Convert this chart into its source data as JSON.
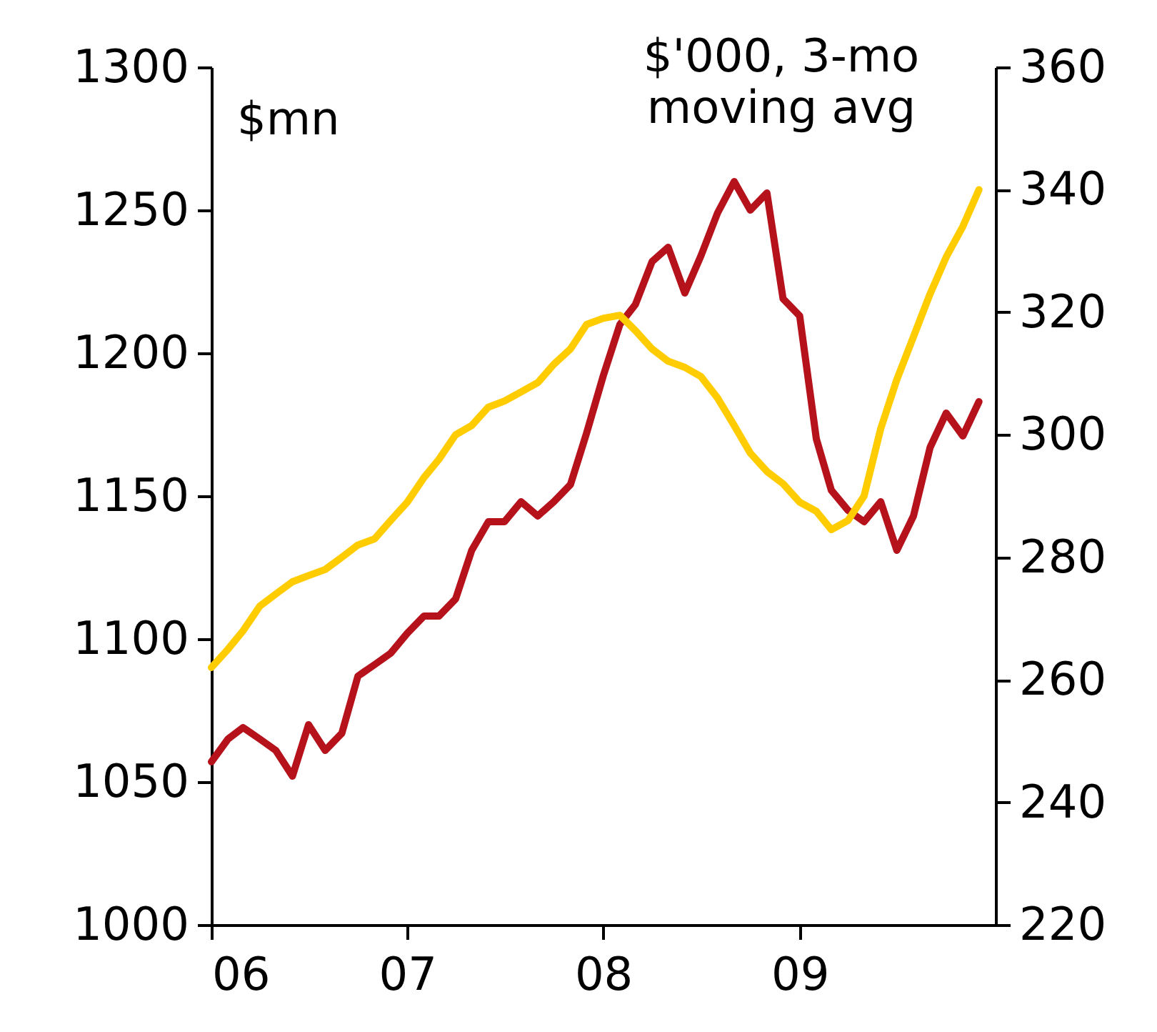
{
  "chart_data": {
    "type": "line",
    "ylabel": "$mn",
    "y2label": "$'000, 3-mo\nmoving avg",
    "x": [
      "2006-01",
      "2006-02",
      "2006-03",
      "2006-04",
      "2006-05",
      "2006-06",
      "2006-07",
      "2006-08",
      "2006-09",
      "2006-10",
      "2006-11",
      "2006-12",
      "2007-01",
      "2007-02",
      "2007-03",
      "2007-04",
      "2007-05",
      "2007-06",
      "2007-07",
      "2007-08",
      "2007-09",
      "2007-10",
      "2007-11",
      "2007-12",
      "2008-01",
      "2008-02",
      "2008-03",
      "2008-04",
      "2008-05",
      "2008-06",
      "2008-07",
      "2008-08",
      "2008-09",
      "2008-10",
      "2008-11",
      "2008-12",
      "2009-01",
      "2009-02",
      "2009-03",
      "2009-04",
      "2009-05",
      "2009-06",
      "2009-07",
      "2009-08",
      "2009-09",
      "2009-10",
      "2009-11",
      "2009-12"
    ],
    "series": [
      {
        "color": "#b5121b",
        "values": [
          1057,
          1065,
          1069,
          1065,
          1061,
          1052,
          1070,
          1061,
          1067,
          1087,
          1091,
          1095,
          1102,
          1108,
          1108,
          1114,
          1131,
          1141,
          1141,
          1148,
          1143,
          1148,
          1154,
          1172,
          1192,
          1210,
          1217,
          1232,
          1237,
          1221,
          1234,
          1249,
          1260,
          1250,
          1256,
          1219,
          1213,
          1170,
          1152,
          1145,
          1141,
          1148,
          1131,
          1143,
          1167,
          1179,
          1171,
          1183
        ]
      },
      {
        "color": "#ffcc00",
        "axis": "y2",
        "values": [
          262,
          265,
          268,
          272,
          274,
          276,
          277,
          278,
          280,
          282,
          283,
          286,
          289,
          293,
          296,
          300,
          301.5,
          304.5,
          305.5,
          307,
          308.5,
          311.5,
          314,
          318,
          319,
          319.5,
          317,
          314,
          312,
          311,
          309.5,
          306,
          301.5,
          297,
          294,
          292,
          289,
          287.5,
          284.5,
          286,
          290,
          301,
          309,
          316,
          323,
          329,
          334,
          340
        ]
      }
    ],
    "xlim": [
      "2006-01",
      "2010-01"
    ],
    "xticks": [
      {
        "value": "2006-01",
        "label": "06"
      },
      {
        "value": "2007-01",
        "label": "07"
      },
      {
        "value": "2008-01",
        "label": "08"
      },
      {
        "value": "2009-01",
        "label": "09"
      }
    ],
    "ylim": [
      1000,
      1300
    ],
    "yticks": [
      1000,
      1050,
      1100,
      1150,
      1200,
      1250,
      1300
    ],
    "y2lim": [
      220,
      360
    ],
    "y2ticks": [
      220,
      240,
      260,
      280,
      300,
      320,
      340,
      360
    ],
    "grid": false
  }
}
